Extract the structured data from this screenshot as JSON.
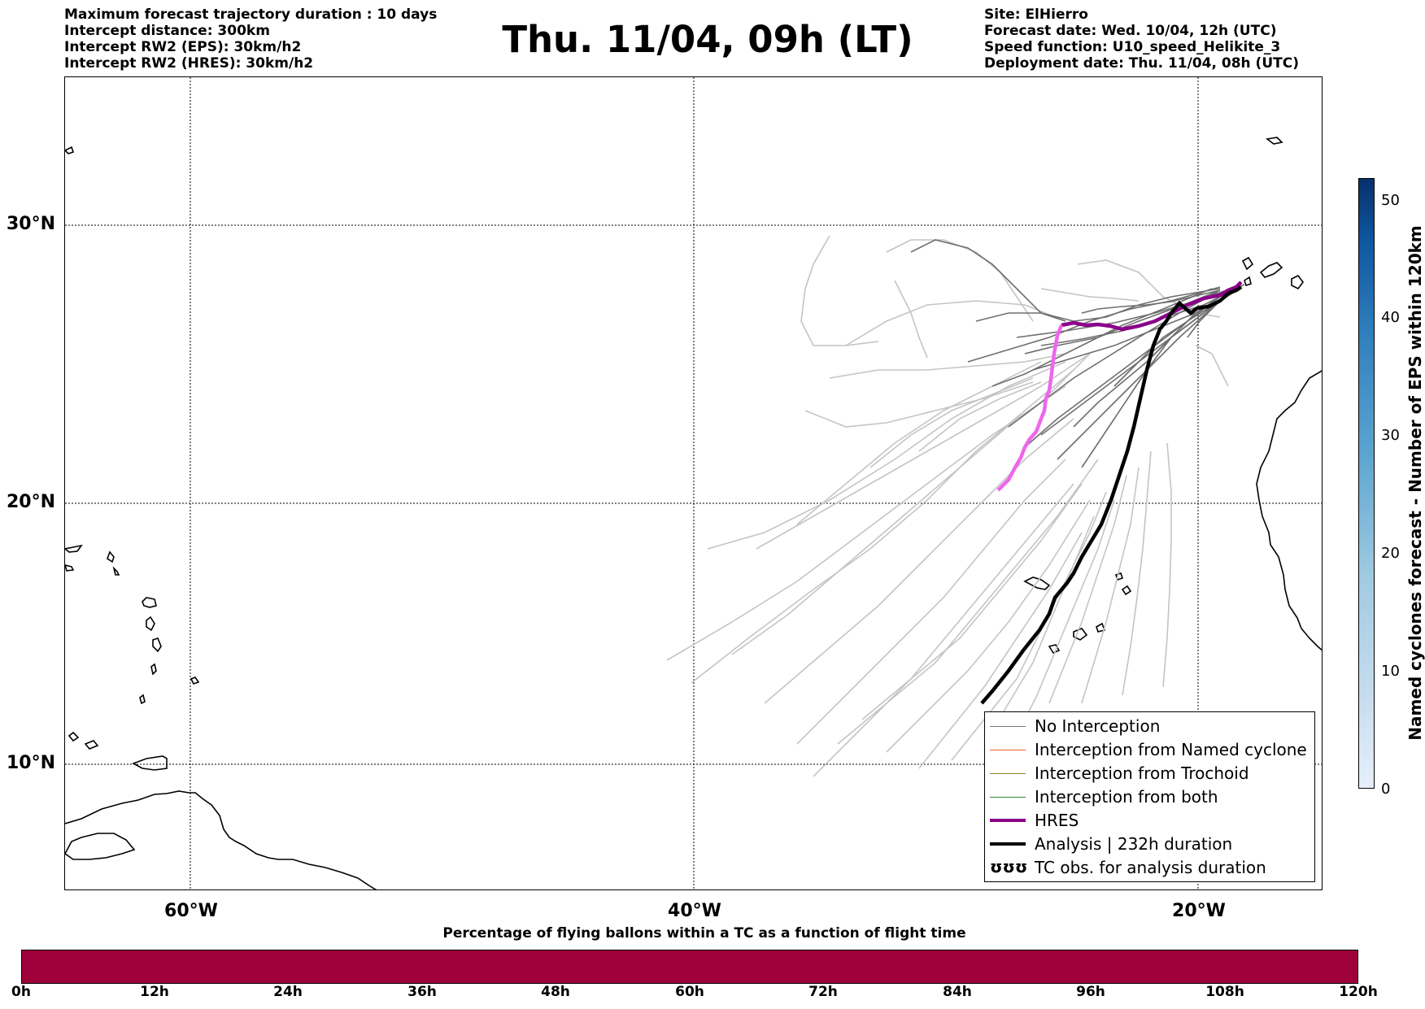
{
  "header": {
    "left_lines": [
      "Maximum forecast trajectory duration : 10 days",
      "Intercept distance: 300km",
      "Intercept RW2 (EPS):  30km/h2",
      "Intercept RW2 (HRES): 30km/h2"
    ],
    "title": "Thu. 11/04, 09h (LT)",
    "right_lines": [
      "Site: ElHierro",
      "Forecast date: Wed. 10/04, 12h (UTC)",
      "Speed function: U10_speed_Helikite_3",
      "Deployment date: Thu. 11/04, 08h (UTC)"
    ]
  },
  "map": {
    "lat_labels": [
      "30°N",
      "20°N",
      "10°N"
    ],
    "lon_labels": [
      "60°W",
      "40°W",
      "20°W"
    ]
  },
  "legend": {
    "items": [
      {
        "label": "No Interception",
        "color": "#777777"
      },
      {
        "label": "Interception from Named cyclone",
        "color": "#e8632a"
      },
      {
        "label": "Interception from Trochoid",
        "color": "#8b8b2a"
      },
      {
        "label": "Interception from both",
        "color": "#2a8b2a"
      },
      {
        "label": "HRES",
        "color": "#8b008b"
      },
      {
        "label": "Analysis | 232h duration",
        "color": "#000000"
      },
      {
        "label": "TC obs. for analysis duration",
        "symbol": "ʊʊʊ"
      }
    ]
  },
  "colorbar_right": {
    "label": "Named cyclones forecast - Number of EPS within 120km",
    "ticks": [
      "0",
      "10",
      "20",
      "30",
      "40",
      "50"
    ]
  },
  "colorbar_bottom": {
    "title": "Percentage of flying ballons within a TC as a function of flight time",
    "color": "#9e0039",
    "ticks": [
      "0h",
      "12h",
      "24h",
      "36h",
      "48h",
      "60h",
      "72h",
      "84h",
      "96h",
      "108h",
      "120h"
    ]
  }
}
